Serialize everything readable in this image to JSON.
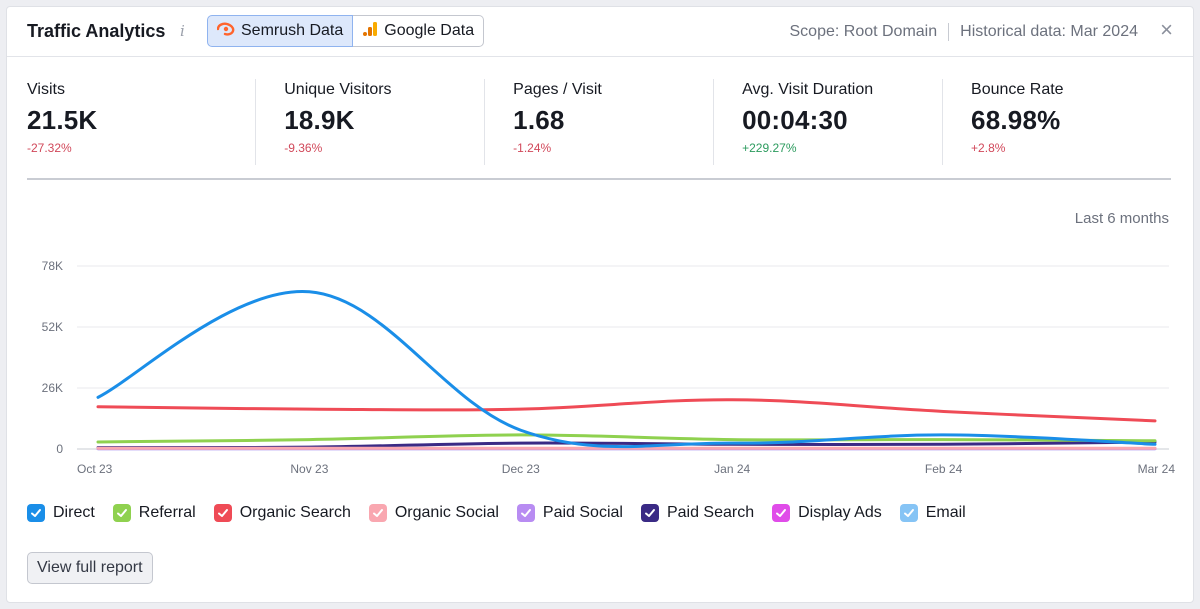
{
  "header": {
    "title": "Traffic Analytics",
    "tabs": [
      {
        "label": "Semrush Data",
        "icon": "semrush-logo-icon",
        "active": true
      },
      {
        "label": "Google Data",
        "icon": "google-analytics-icon",
        "active": false
      }
    ],
    "scope": "Scope: Root Domain",
    "historical": "Historical data: Mar 2024"
  },
  "metrics": [
    {
      "label": "Visits",
      "value": "21.5K",
      "change": "-27.32%",
      "trend": "negative"
    },
    {
      "label": "Unique Visitors",
      "value": "18.9K",
      "change": "-9.36%",
      "trend": "negative"
    },
    {
      "label": "Pages / Visit",
      "value": "1.68",
      "change": "-1.24%",
      "trend": "negative"
    },
    {
      "label": "Avg. Visit Duration",
      "value": "00:04:30",
      "change": "+229.27%",
      "trend": "positive"
    },
    {
      "label": "Bounce Rate",
      "value": "68.98%",
      "change": "+2.8%",
      "trend": "negative"
    }
  ],
  "period": "Last 6 months",
  "chart_data": {
    "type": "line",
    "x": [
      "Oct 23",
      "Nov 23",
      "Dec 23",
      "Jan 24",
      "Feb 24",
      "Mar 24"
    ],
    "y_ticks": [
      "0",
      "26K",
      "52K",
      "78K"
    ],
    "ylim": [
      0,
      78000
    ],
    "grid": true,
    "series": [
      {
        "name": "Direct",
        "color": "#1a8ee8",
        "values": [
          22000,
          67000,
          8000,
          2500,
          6000,
          2000
        ]
      },
      {
        "name": "Referral",
        "color": "#8fd14f",
        "values": [
          3000,
          4000,
          6000,
          4000,
          4000,
          3500
        ]
      },
      {
        "name": "Organic Search",
        "color": "#ef4b56",
        "values": [
          18000,
          17000,
          17000,
          21000,
          16000,
          12000
        ]
      },
      {
        "name": "Organic Social",
        "color": "#f9a7b0",
        "values": [
          300,
          300,
          300,
          300,
          300,
          300
        ]
      },
      {
        "name": "Paid Social",
        "color": "#b88cf2",
        "values": [
          200,
          200,
          200,
          200,
          200,
          200
        ]
      },
      {
        "name": "Paid Search",
        "color": "#3a2a85",
        "values": [
          600,
          800,
          2500,
          2000,
          2000,
          3000
        ]
      },
      {
        "name": "Display Ads",
        "color": "#e04ce9",
        "values": [
          150,
          150,
          150,
          150,
          150,
          150
        ]
      },
      {
        "name": "Email",
        "color": "#86c4f5",
        "values": [
          100,
          100,
          100,
          100,
          100,
          100
        ]
      }
    ]
  },
  "button": {
    "label": "View full report"
  }
}
